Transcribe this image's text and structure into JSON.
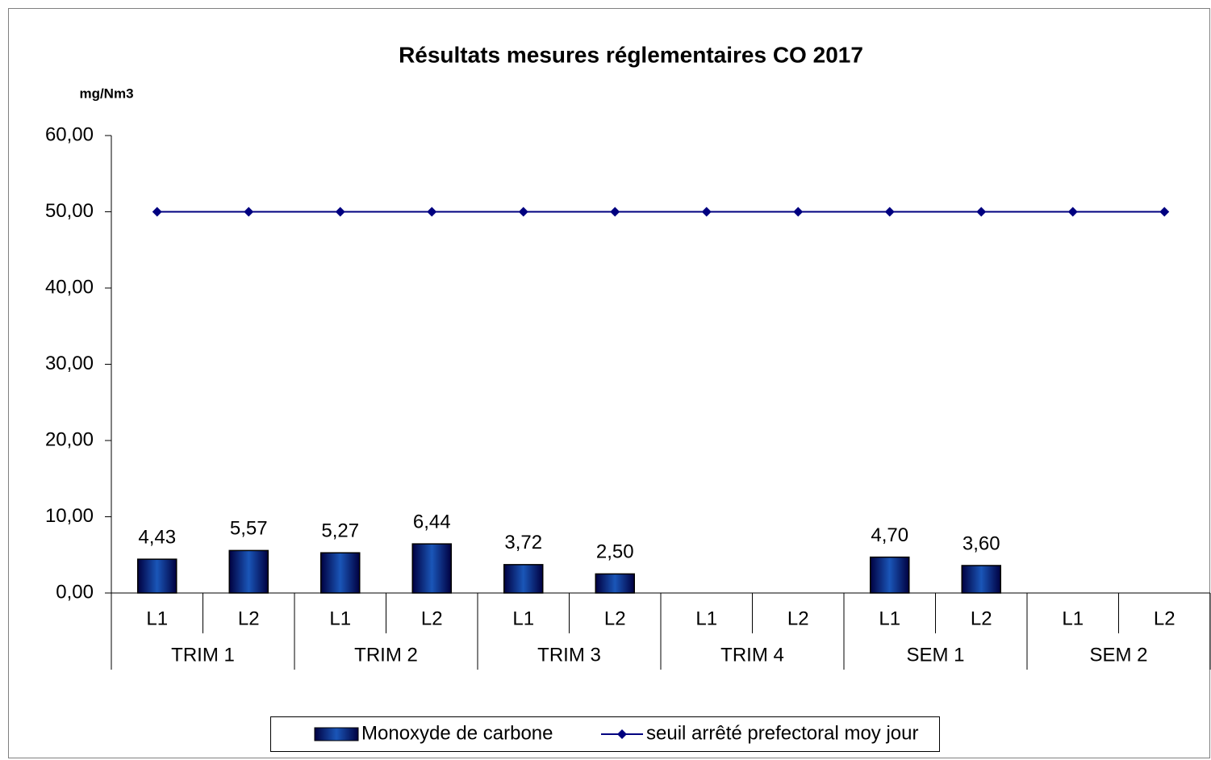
{
  "chart_data": {
    "type": "bar",
    "title": "Résultats mesures réglementaires CO 2017",
    "y_axis_label": "mg/Nm3",
    "categories": [
      "L1",
      "L2",
      "L1",
      "L2",
      "L1",
      "L2",
      "L1",
      "L2",
      "L1",
      "L2",
      "L1",
      "L2"
    ],
    "groups": [
      "TRIM 1",
      "TRIM 2",
      "TRIM 3",
      "TRIM 4",
      "SEM 1",
      "SEM 2"
    ],
    "series": [
      {
        "name": "Monoxyde de carbone",
        "type": "bar",
        "color": "#1a56b8",
        "values": [
          4.43,
          5.57,
          5.27,
          6.44,
          3.72,
          2.5,
          null,
          null,
          4.7,
          3.6,
          null,
          null
        ],
        "value_labels": [
          "4,43",
          "5,57",
          "5,27",
          "6,44",
          "3,72",
          "2,50",
          null,
          null,
          "4,70",
          "3,60",
          null,
          null
        ]
      },
      {
        "name": "seuil arrêté prefectoral moy jour",
        "type": "line",
        "color": "#000080",
        "values": [
          50,
          50,
          50,
          50,
          50,
          50,
          50,
          50,
          50,
          50,
          50,
          50
        ]
      }
    ],
    "ylim": [
      0,
      60
    ],
    "yticks": [
      {
        "value": 0,
        "label": "0,00"
      },
      {
        "value": 10,
        "label": "10,00"
      },
      {
        "value": 20,
        "label": "20,00"
      },
      {
        "value": 30,
        "label": "30,00"
      },
      {
        "value": 40,
        "label": "40,00"
      },
      {
        "value": 50,
        "label": "50,00"
      },
      {
        "value": 60,
        "label": "60,00"
      }
    ],
    "grid": false,
    "legend": "bottom"
  }
}
